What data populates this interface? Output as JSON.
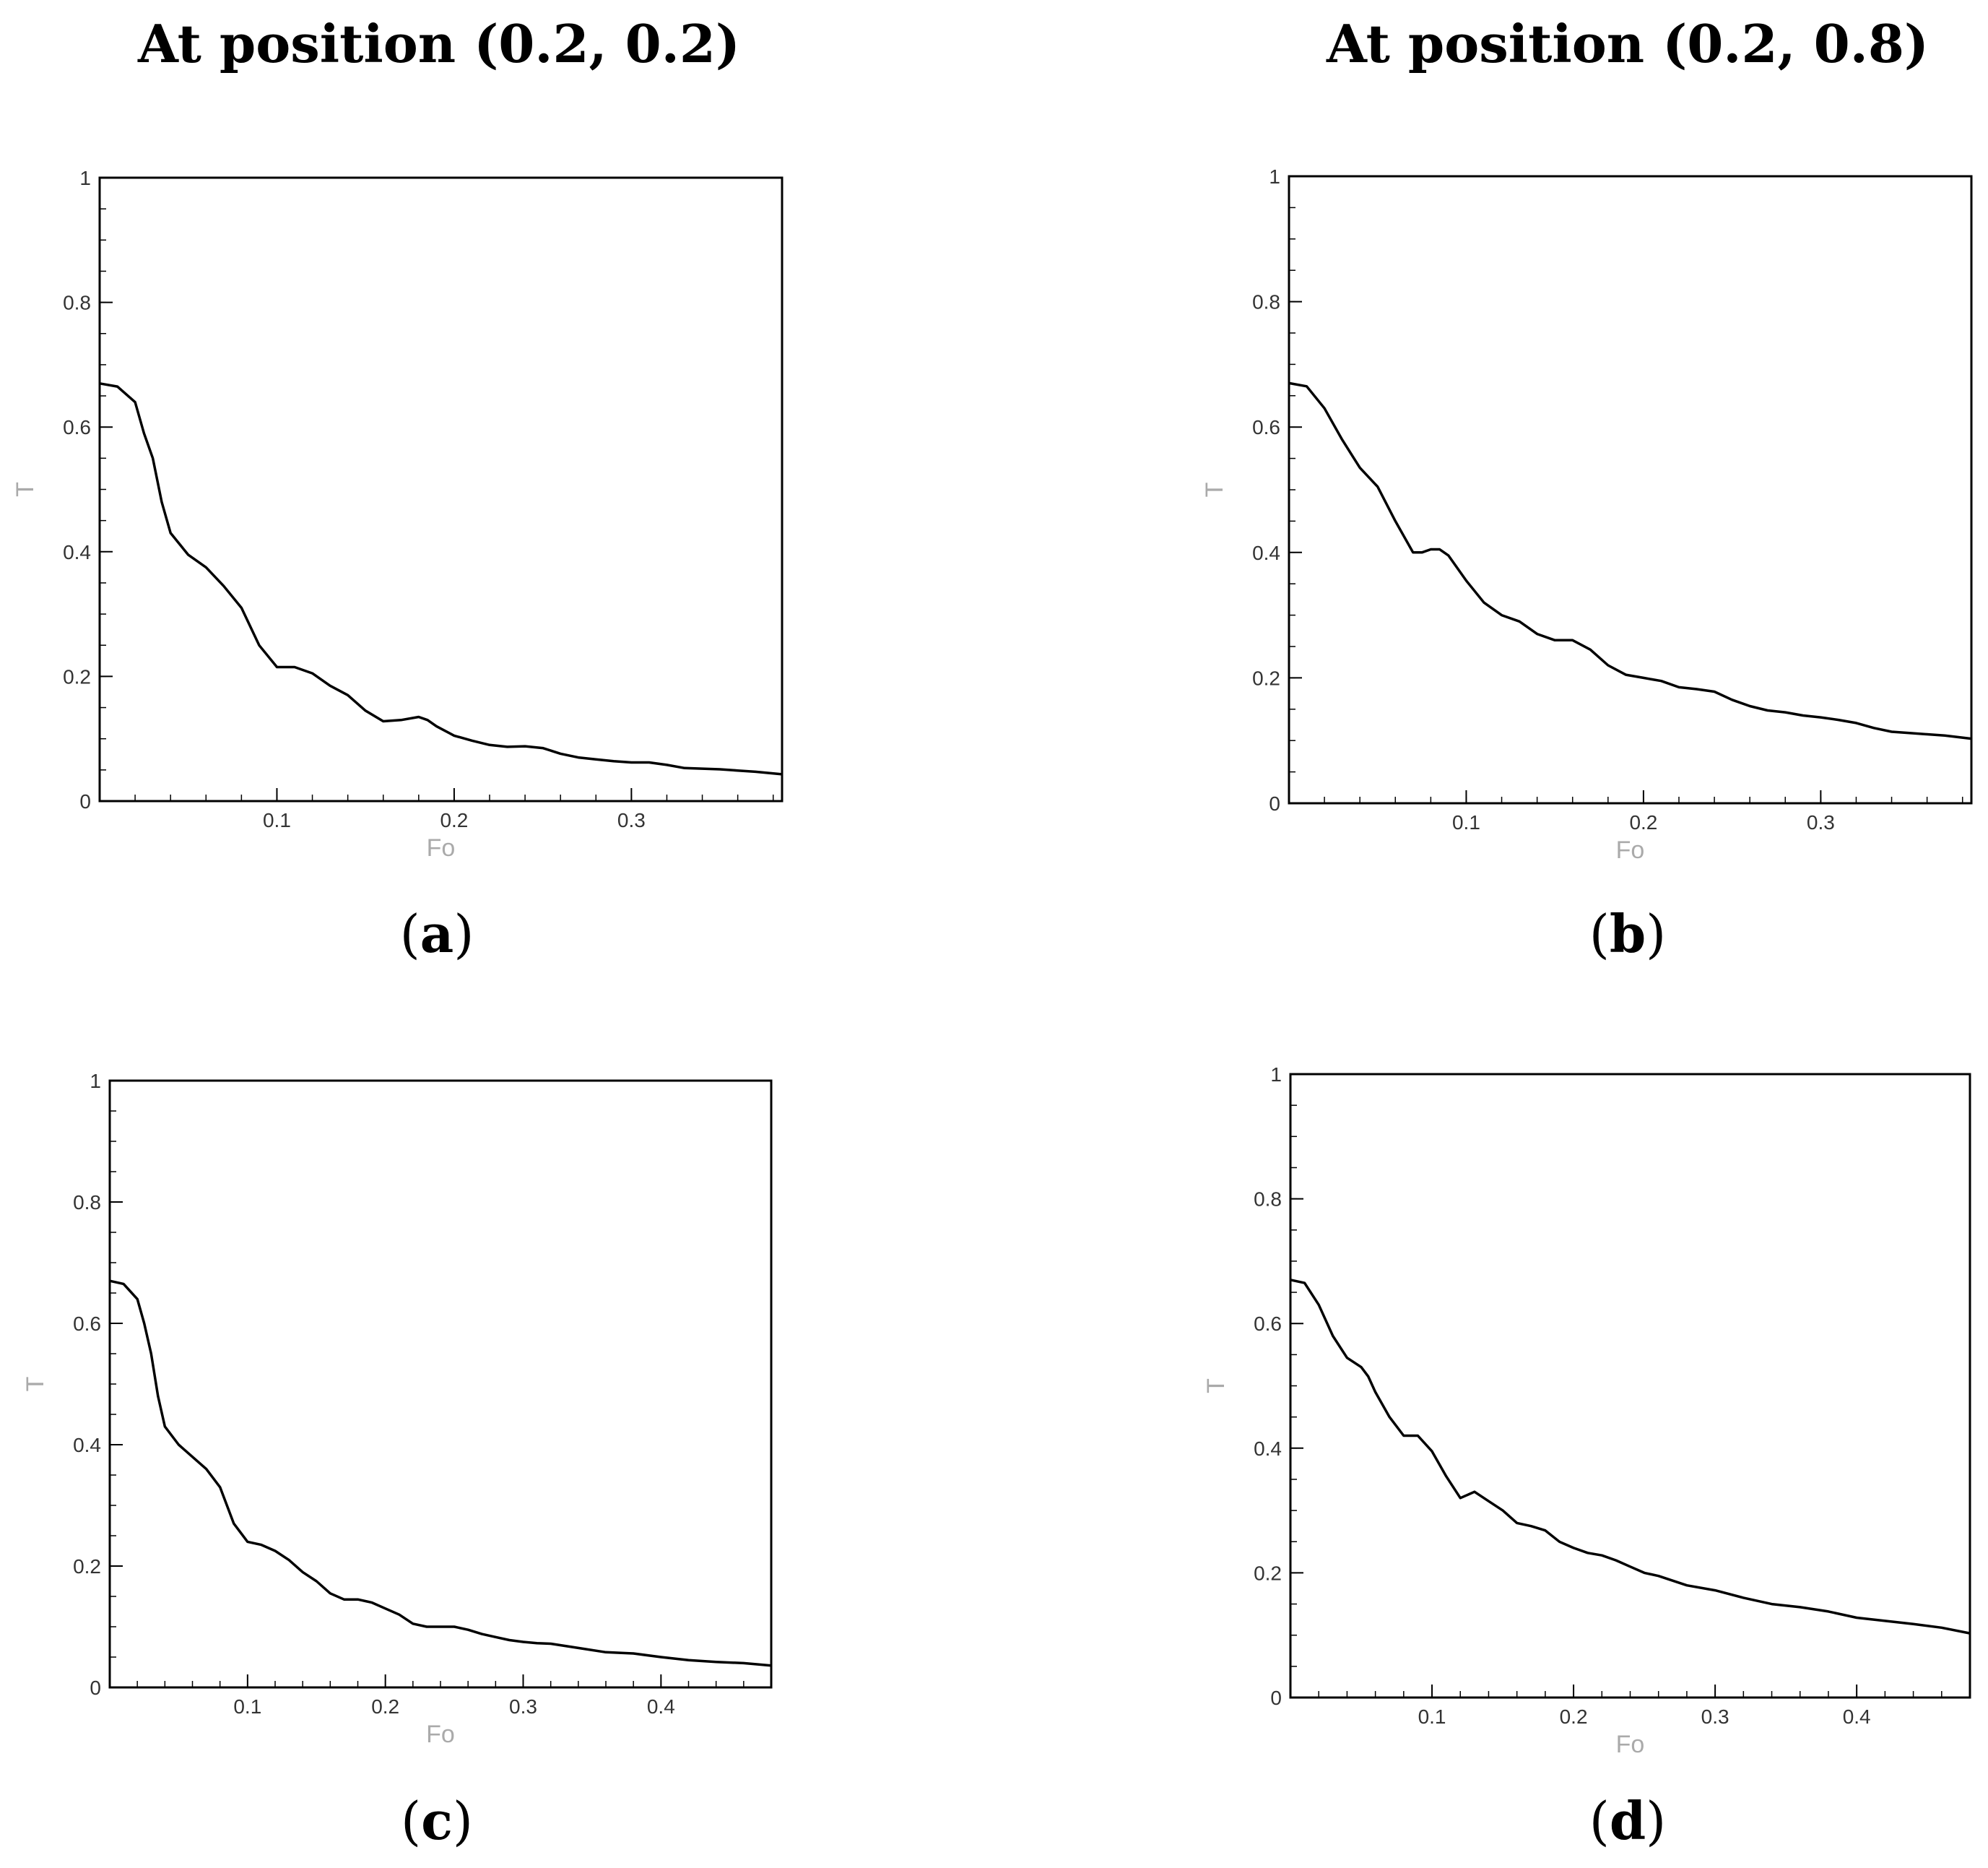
{
  "titles": {
    "left": "At position (0.2, 0.2)",
    "right": "At position (0.2, 0.8)"
  },
  "panel_letters": [
    "a",
    "b",
    "c",
    "d"
  ],
  "chart_data": [
    {
      "type": "line",
      "panel": "a",
      "xlabel": "Fo",
      "ylabel": "T",
      "xlim": [
        0,
        0.385
      ],
      "ylim": [
        0,
        1
      ],
      "xticks": [
        "0.1",
        "0.2",
        "0.3"
      ],
      "yticks": [
        "0",
        "0.2",
        "0.4",
        "0.6",
        "0.8",
        "1"
      ],
      "x": [
        0,
        0.01,
        0.02,
        0.025,
        0.03,
        0.035,
        0.04,
        0.05,
        0.06,
        0.07,
        0.08,
        0.09,
        0.1,
        0.11,
        0.12,
        0.13,
        0.14,
        0.15,
        0.16,
        0.17,
        0.18,
        0.185,
        0.19,
        0.2,
        0.21,
        0.22,
        0.23,
        0.24,
        0.25,
        0.26,
        0.27,
        0.28,
        0.29,
        0.3,
        0.31,
        0.32,
        0.33,
        0.34,
        0.35,
        0.36,
        0.37,
        0.385
      ],
      "y": [
        0.67,
        0.665,
        0.64,
        0.59,
        0.55,
        0.48,
        0.43,
        0.395,
        0.375,
        0.345,
        0.31,
        0.25,
        0.215,
        0.215,
        0.205,
        0.185,
        0.17,
        0.145,
        0.128,
        0.13,
        0.135,
        0.13,
        0.12,
        0.105,
        0.097,
        0.09,
        0.087,
        0.088,
        0.085,
        0.076,
        0.07,
        0.067,
        0.064,
        0.062,
        0.062,
        0.058,
        0.053,
        0.052,
        0.051,
        0.049,
        0.047,
        0.043
      ]
    },
    {
      "type": "line",
      "panel": "b",
      "xlabel": "Fo",
      "ylabel": "T",
      "xlim": [
        0,
        0.385
      ],
      "ylim": [
        0,
        1
      ],
      "xticks": [
        "0.1",
        "0.2",
        "0.3"
      ],
      "yticks": [
        "0",
        "0.2",
        "0.4",
        "0.6",
        "0.8",
        "1"
      ],
      "x": [
        0,
        0.01,
        0.02,
        0.03,
        0.04,
        0.05,
        0.06,
        0.07,
        0.075,
        0.08,
        0.085,
        0.09,
        0.1,
        0.11,
        0.12,
        0.13,
        0.14,
        0.15,
        0.16,
        0.17,
        0.18,
        0.19,
        0.2,
        0.21,
        0.22,
        0.23,
        0.24,
        0.25,
        0.26,
        0.27,
        0.28,
        0.29,
        0.3,
        0.31,
        0.32,
        0.33,
        0.34,
        0.35,
        0.36,
        0.37,
        0.385
      ],
      "y": [
        0.67,
        0.665,
        0.63,
        0.58,
        0.535,
        0.505,
        0.45,
        0.4,
        0.4,
        0.405,
        0.405,
        0.395,
        0.355,
        0.32,
        0.3,
        0.29,
        0.27,
        0.26,
        0.26,
        0.245,
        0.22,
        0.205,
        0.2,
        0.195,
        0.185,
        0.182,
        0.178,
        0.165,
        0.155,
        0.148,
        0.145,
        0.14,
        0.137,
        0.133,
        0.128,
        0.12,
        0.114,
        0.112,
        0.11,
        0.108,
        0.103
      ]
    },
    {
      "type": "line",
      "panel": "c",
      "xlabel": "Fo",
      "ylabel": "T",
      "xlim": [
        0,
        0.48
      ],
      "ylim": [
        0,
        1
      ],
      "xticks": [
        "0.1",
        "0.2",
        "0.3",
        "0.4"
      ],
      "yticks": [
        "0",
        "0.2",
        "0.4",
        "0.6",
        "0.8",
        "1"
      ],
      "x": [
        0,
        0.01,
        0.02,
        0.025,
        0.03,
        0.035,
        0.04,
        0.05,
        0.06,
        0.07,
        0.08,
        0.09,
        0.1,
        0.11,
        0.12,
        0.13,
        0.14,
        0.15,
        0.16,
        0.17,
        0.18,
        0.19,
        0.2,
        0.21,
        0.22,
        0.23,
        0.24,
        0.25,
        0.26,
        0.27,
        0.28,
        0.29,
        0.3,
        0.31,
        0.32,
        0.34,
        0.36,
        0.38,
        0.4,
        0.42,
        0.44,
        0.46,
        0.48
      ],
      "y": [
        0.67,
        0.665,
        0.64,
        0.6,
        0.55,
        0.48,
        0.43,
        0.4,
        0.38,
        0.36,
        0.33,
        0.27,
        0.24,
        0.235,
        0.225,
        0.21,
        0.19,
        0.175,
        0.155,
        0.145,
        0.145,
        0.14,
        0.13,
        0.12,
        0.105,
        0.1,
        0.1,
        0.1,
        0.095,
        0.088,
        0.083,
        0.078,
        0.075,
        0.073,
        0.072,
        0.065,
        0.058,
        0.056,
        0.05,
        0.045,
        0.042,
        0.04,
        0.036
      ]
    },
    {
      "type": "line",
      "panel": "d",
      "xlabel": "Fo",
      "ylabel": "T",
      "xlim": [
        0,
        0.48
      ],
      "ylim": [
        0,
        1
      ],
      "xticks": [
        "0.1",
        "0.2",
        "0.3",
        "0.4"
      ],
      "yticks": [
        "0",
        "0.2",
        "0.4",
        "0.6",
        "0.8",
        "1"
      ],
      "x": [
        0,
        0.01,
        0.02,
        0.03,
        0.04,
        0.05,
        0.055,
        0.06,
        0.07,
        0.08,
        0.09,
        0.1,
        0.11,
        0.12,
        0.13,
        0.14,
        0.15,
        0.16,
        0.17,
        0.18,
        0.19,
        0.2,
        0.21,
        0.22,
        0.23,
        0.24,
        0.25,
        0.26,
        0.28,
        0.3,
        0.32,
        0.34,
        0.36,
        0.38,
        0.4,
        0.42,
        0.44,
        0.46,
        0.48
      ],
      "y": [
        0.67,
        0.665,
        0.63,
        0.58,
        0.545,
        0.53,
        0.515,
        0.49,
        0.45,
        0.42,
        0.42,
        0.395,
        0.355,
        0.32,
        0.33,
        0.315,
        0.3,
        0.28,
        0.275,
        0.268,
        0.25,
        0.24,
        0.232,
        0.228,
        0.22,
        0.21,
        0.2,
        0.195,
        0.18,
        0.172,
        0.16,
        0.15,
        0.145,
        0.138,
        0.128,
        0.123,
        0.118,
        0.112,
        0.103
      ]
    }
  ]
}
